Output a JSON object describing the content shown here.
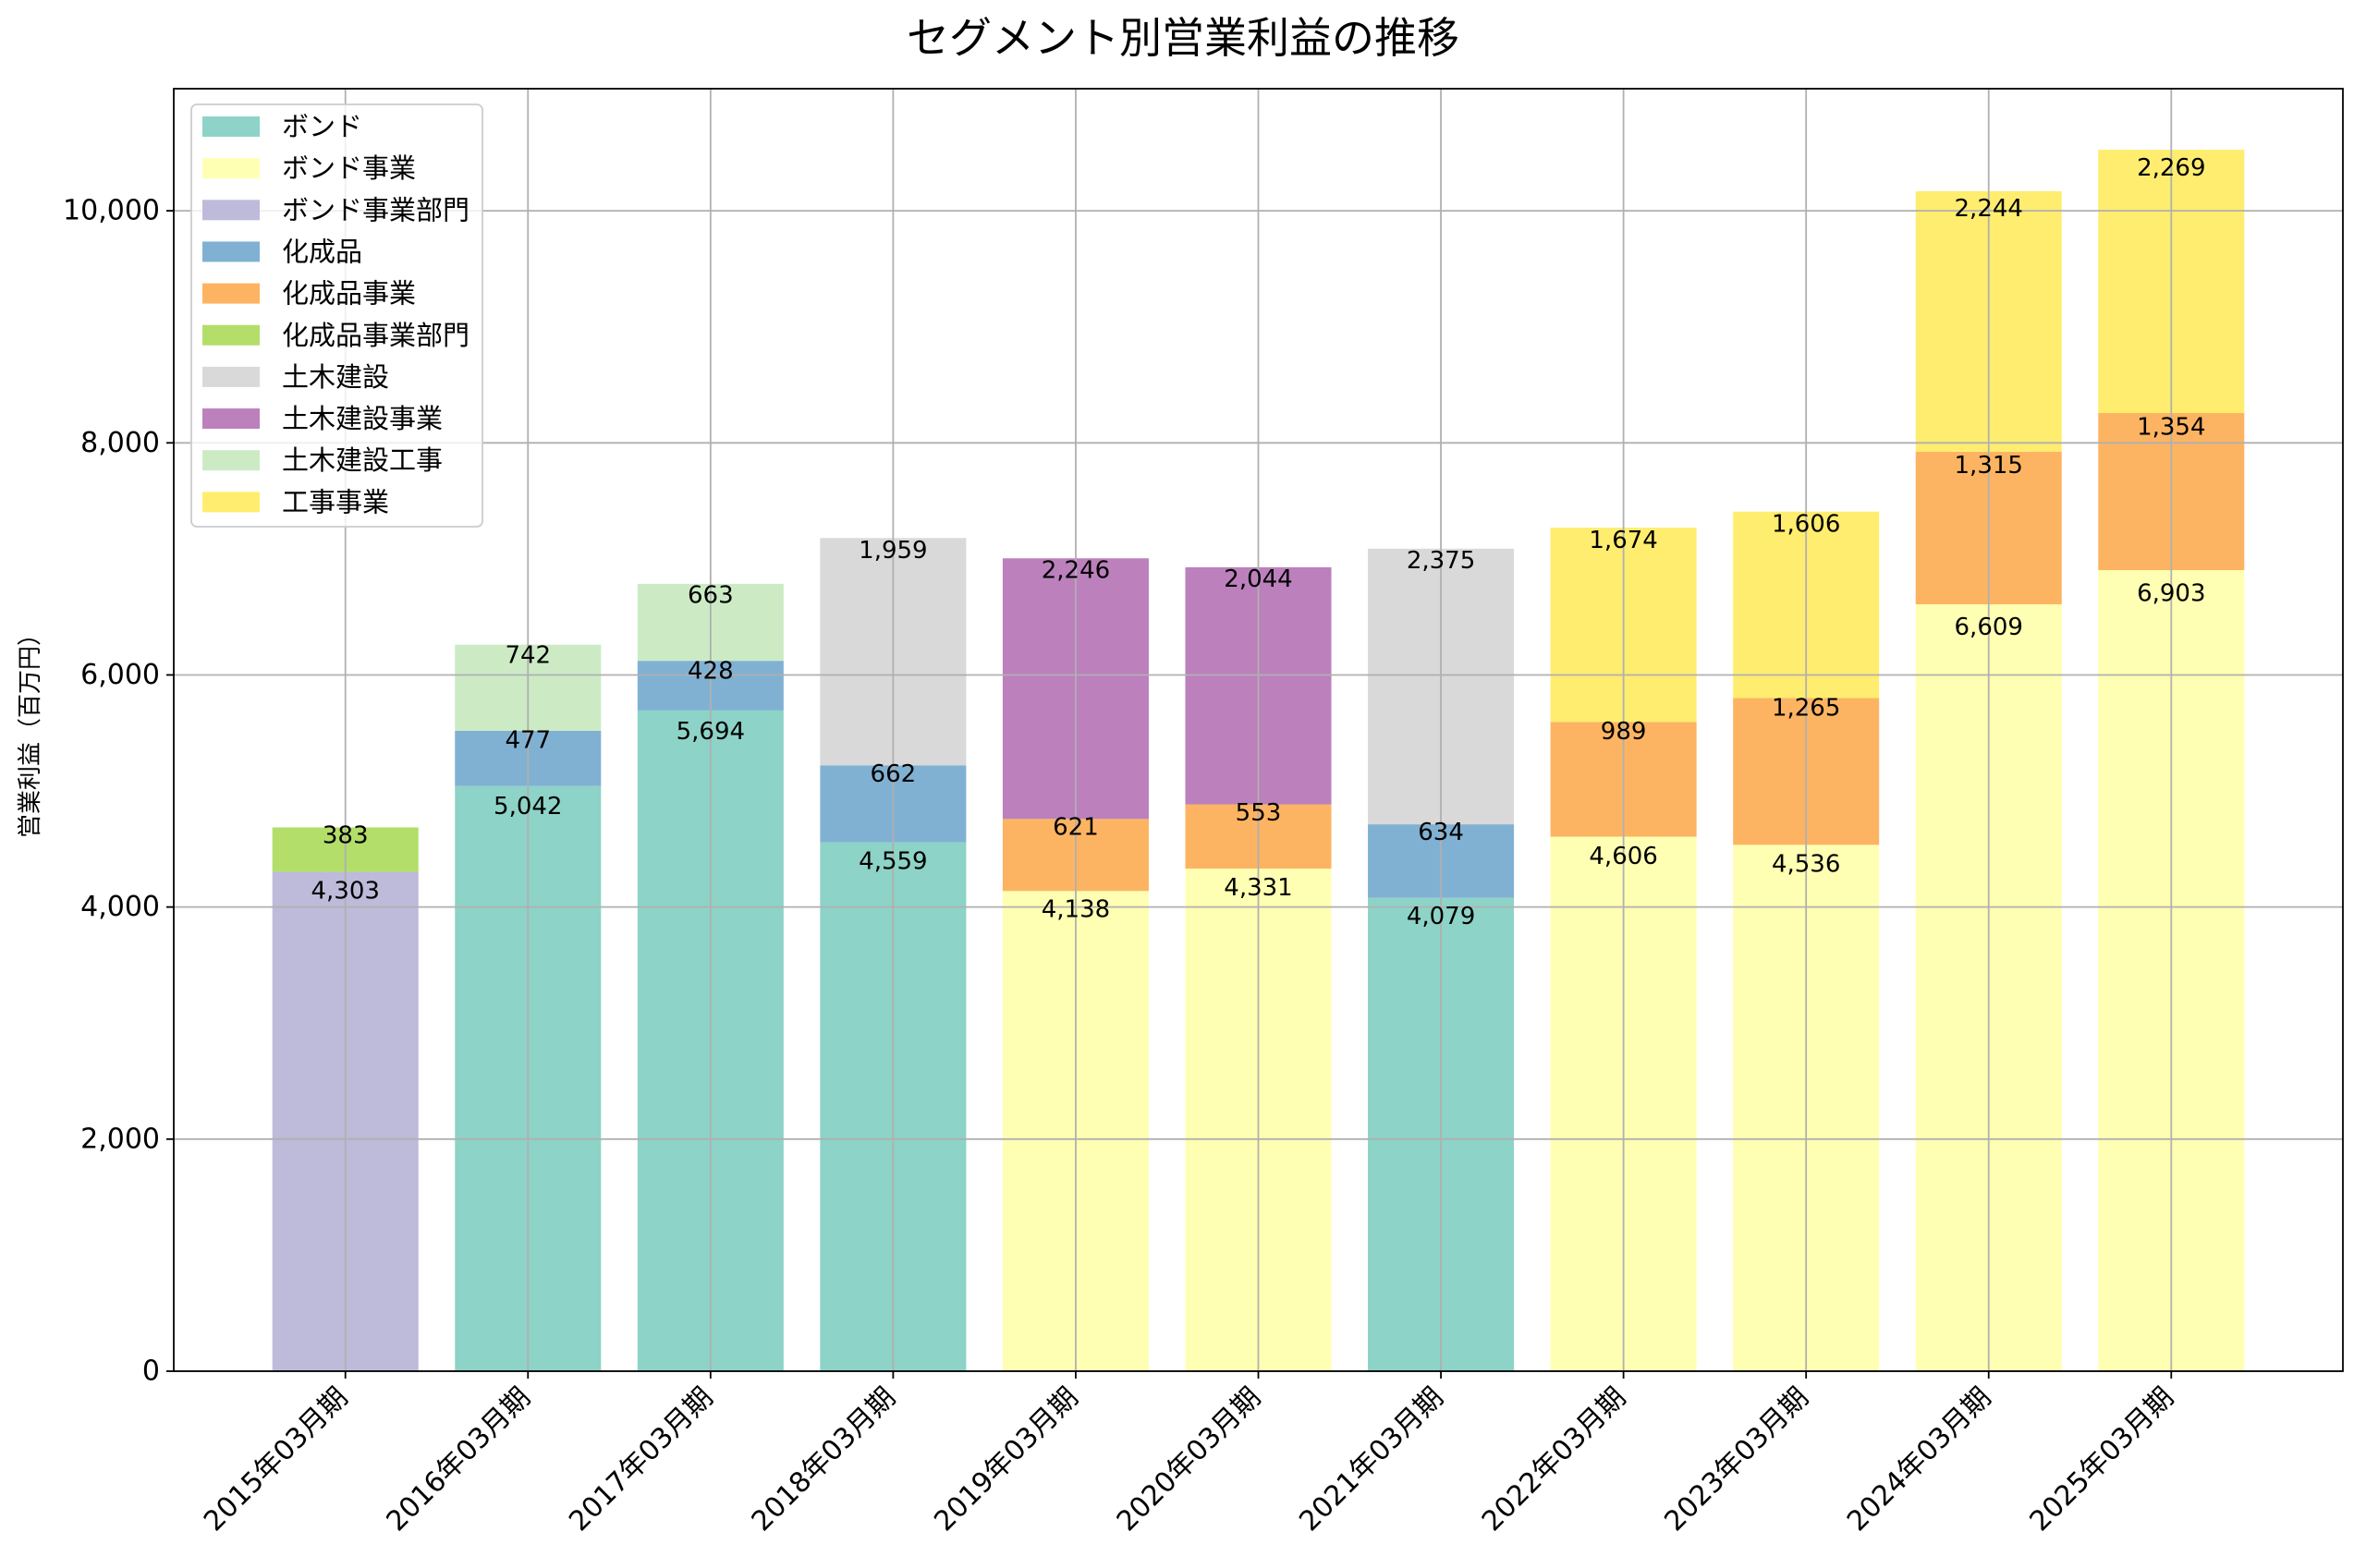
{
  "chart_data": {
    "type": "bar",
    "stacked": true,
    "title": "セグメント別営業利益の推移",
    "ylabel": "営業利益（百万円）",
    "categories": [
      "2015年03月期",
      "2016年03月期",
      "2017年03月期",
      "2018年03月期",
      "2019年03月期",
      "2020年03月期",
      "2021年03月期",
      "2022年03月期",
      "2023年03月期",
      "2024年03月期",
      "2025年03月期"
    ],
    "ylim": [
      0,
      11052
    ],
    "yticks": [
      0,
      2000,
      4000,
      6000,
      8000,
      10000
    ],
    "grid": true,
    "legend_position": "top-left",
    "series": [
      {
        "name": "ボンド",
        "color": "#8dd3c7",
        "values": [
          null,
          5042,
          5694,
          4559,
          null,
          null,
          4079,
          null,
          null,
          null,
          null
        ]
      },
      {
        "name": "ボンド事業",
        "color": "#ffffb3",
        "values": [
          null,
          null,
          null,
          null,
          4138,
          4331,
          null,
          4606,
          4536,
          6609,
          6903
        ]
      },
      {
        "name": "ボンド事業部門",
        "color": "#bebada",
        "values": [
          4303,
          null,
          null,
          null,
          null,
          null,
          null,
          null,
          null,
          null,
          null
        ]
      },
      {
        "name": "化成品",
        "color": "#80b1d3",
        "values": [
          null,
          477,
          428,
          662,
          null,
          null,
          634,
          null,
          null,
          null,
          null
        ]
      },
      {
        "name": "化成品事業",
        "color": "#fdb462",
        "values": [
          null,
          null,
          null,
          null,
          621,
          553,
          null,
          989,
          1265,
          1315,
          1354
        ]
      },
      {
        "name": "化成品事業部門",
        "color": "#b3de69",
        "values": [
          383,
          null,
          null,
          null,
          null,
          null,
          null,
          null,
          null,
          null,
          null
        ]
      },
      {
        "name": "土木建設",
        "color": "#d9d9d9",
        "values": [
          null,
          null,
          null,
          1959,
          null,
          null,
          2375,
          null,
          null,
          null,
          null
        ]
      },
      {
        "name": "土木建設事業",
        "color": "#bc80bd",
        "values": [
          null,
          null,
          null,
          null,
          2246,
          2044,
          null,
          null,
          null,
          null,
          null
        ]
      },
      {
        "name": "土木建設工事",
        "color": "#ccebc5",
        "values": [
          null,
          742,
          663,
          null,
          null,
          null,
          null,
          null,
          null,
          null,
          null
        ]
      },
      {
        "name": "工事事業",
        "color": "#ffed6f",
        "values": [
          null,
          null,
          null,
          null,
          null,
          null,
          null,
          1674,
          1606,
          2244,
          2269
        ]
      }
    ]
  }
}
